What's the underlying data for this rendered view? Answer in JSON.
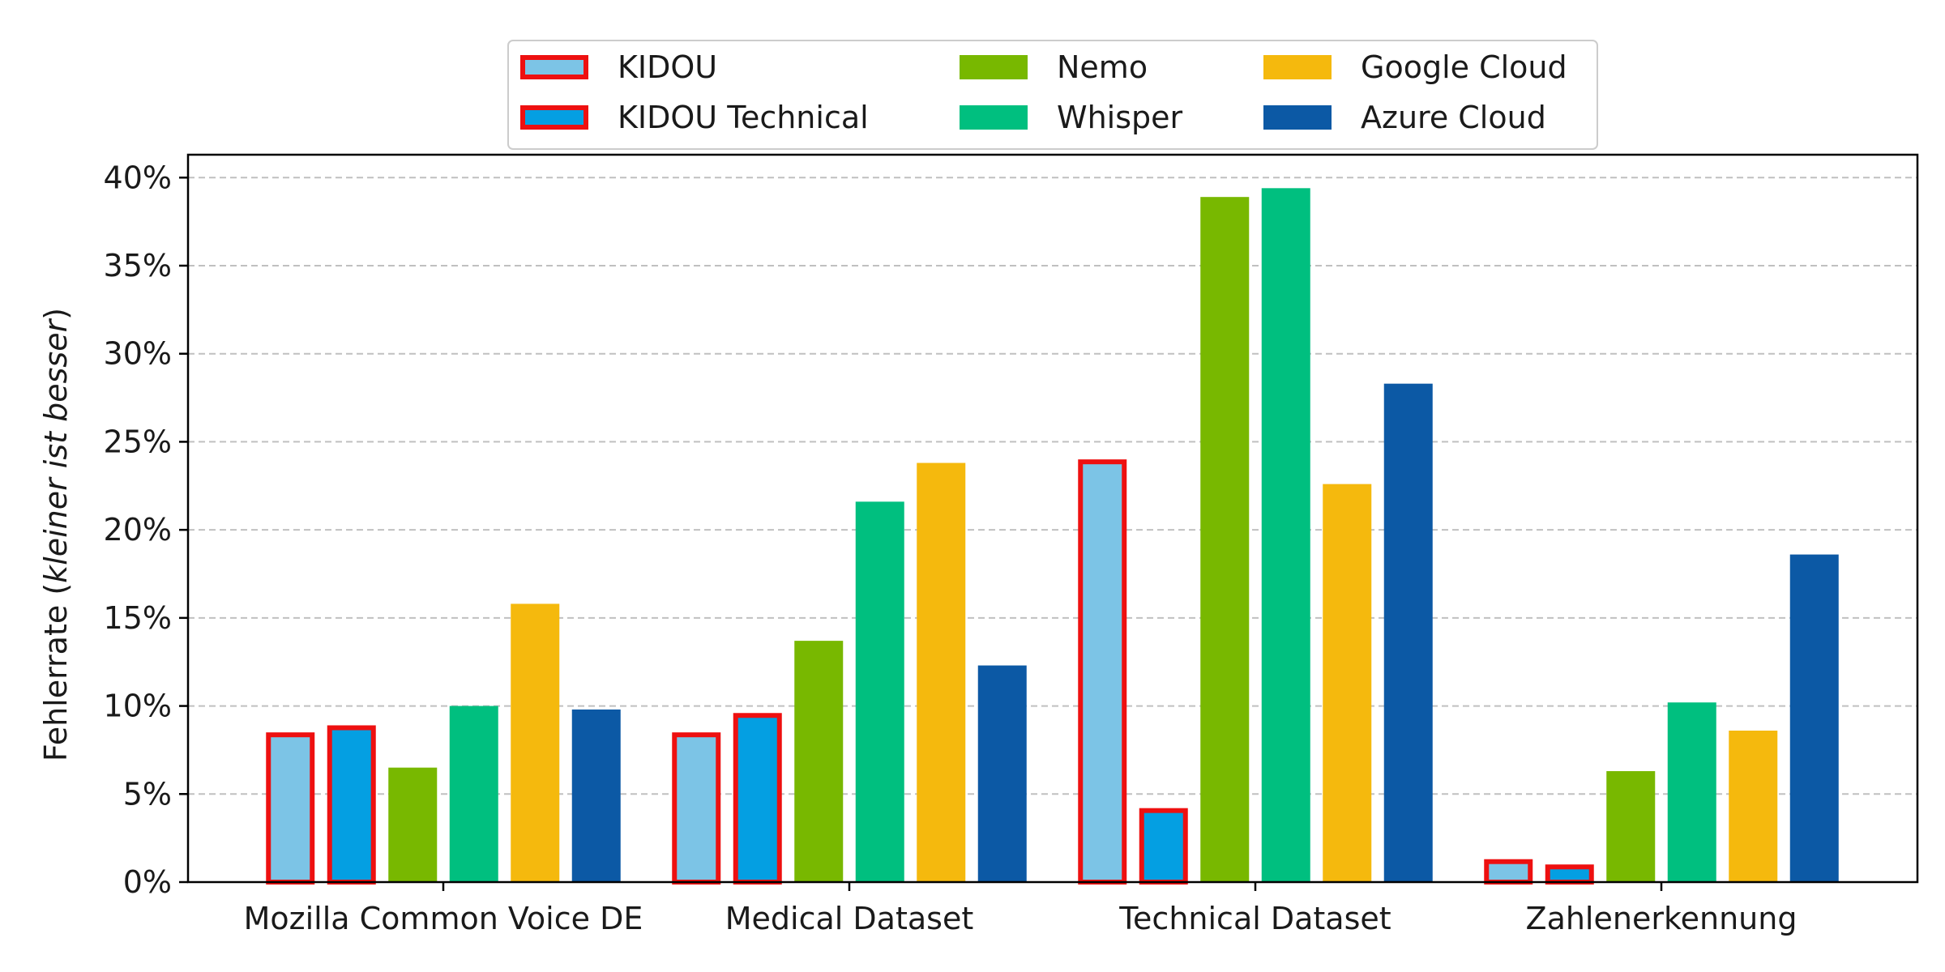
{
  "chart_data": {
    "type": "bar",
    "categories": [
      "Mozilla Common Voice DE",
      "Medical Dataset",
      "Technical Dataset",
      "Zahlenerkennung"
    ],
    "series": [
      {
        "name": "KIDOU",
        "values": [
          8.5,
          8.5,
          24.0,
          1.3
        ],
        "color": "#7cc4e6",
        "highlight": true
      },
      {
        "name": "KIDOU Technical",
        "values": [
          8.9,
          9.6,
          4.2,
          1.0
        ],
        "color": "#049fe2",
        "highlight": true
      },
      {
        "name": "Nemo",
        "values": [
          6.5,
          13.7,
          38.9,
          6.3
        ],
        "color": "#78b800",
        "highlight": false
      },
      {
        "name": "Whisper",
        "values": [
          10.0,
          21.6,
          39.4,
          10.2
        ],
        "color": "#00bf7f",
        "highlight": false
      },
      {
        "name": "Google Cloud",
        "values": [
          15.8,
          23.8,
          22.6,
          8.6
        ],
        "color": "#f5b90d",
        "highlight": false
      },
      {
        "name": "Azure Cloud",
        "values": [
          9.8,
          12.3,
          28.3,
          18.6
        ],
        "color": "#0c59a5",
        "highlight": false
      }
    ],
    "highlight_color": "#ee1010",
    "ylabel_prefix": "Fehlerrate (",
    "ylabel_italic": "kleiner ist besser",
    "ylabel_suffix": ")",
    "ylim": [
      0,
      41.3
    ],
    "yticks": [
      0,
      5,
      10,
      15,
      20,
      25,
      30,
      35,
      40
    ],
    "ytick_labels": [
      "0%",
      "5%",
      "10%",
      "15%",
      "20%",
      "25%",
      "30%",
      "35%",
      "40%"
    ],
    "grid": "horizontal-dashed",
    "legend": {
      "position": "top-center",
      "columns": 3
    }
  }
}
